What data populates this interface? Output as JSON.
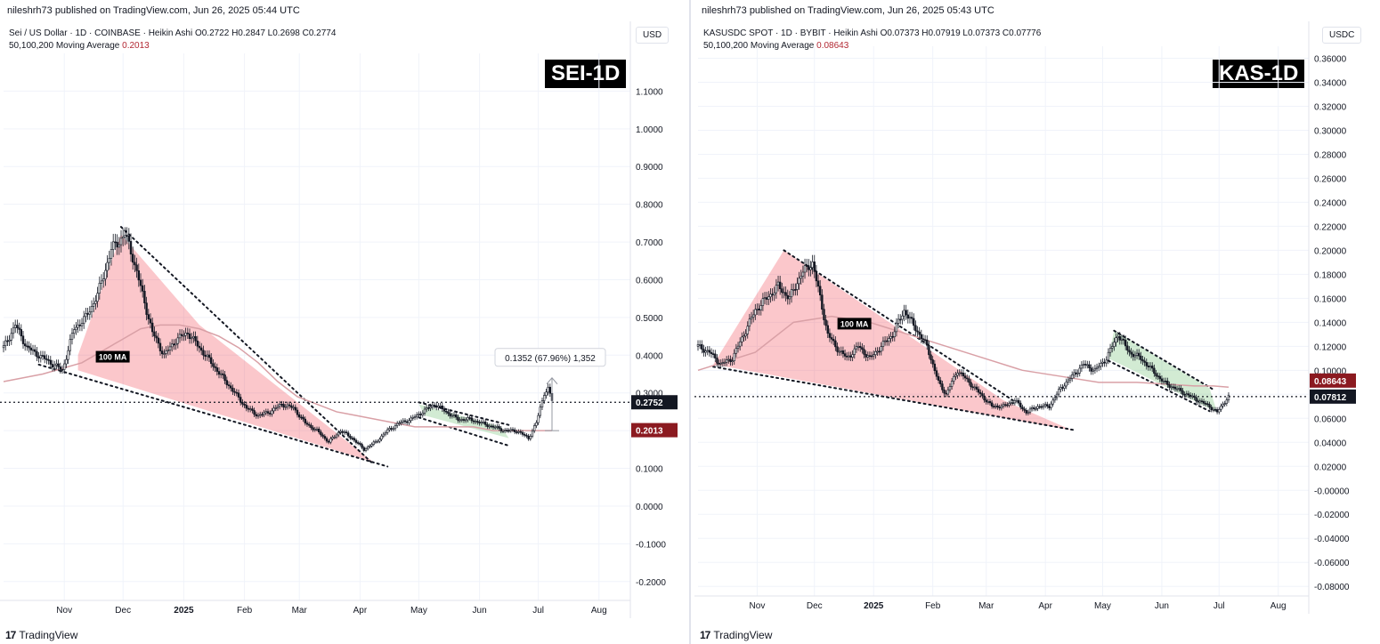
{
  "chart_data": [
    {
      "type": "candlestick",
      "published": "nileshrh73 published on TradingView.com, Jun 26, 2025 05:44 UTC",
      "title": "SEI-1D",
      "symbol_line": "Sei / US Dollar · 1D · COINBASE · Heikin Ashi  O0.2722  H0.2847  L0.2698  C0.2774",
      "ma_label": "50,100,200 Moving Average",
      "ma_value": "0.2013",
      "currency": "USD",
      "ylim": [
        -0.25,
        1.2
      ],
      "y_ticks": [
        "1.1000",
        "1.0000",
        "0.9000",
        "0.8000",
        "0.7000",
        "0.6000",
        "0.5000",
        "0.4000",
        "0.3000",
        "0.2000",
        "0.1000",
        "0.0000",
        "-0.1000",
        "-0.2000"
      ],
      "y_tick_values": [
        1.1,
        1.0,
        0.9,
        0.8,
        0.7,
        0.6,
        0.5,
        0.4,
        0.3,
        0.2,
        0.1,
        0.0,
        -0.1,
        -0.2
      ],
      "x_ticks": [
        "Nov",
        "Dec",
        "2025",
        "Feb",
        "Mar",
        "Apr",
        "May",
        "Jun",
        "Jul",
        "Aug"
      ],
      "x_tick_days": [
        31,
        61,
        92,
        123,
        151,
        182,
        212,
        243,
        273,
        304
      ],
      "x_range_days": [
        0,
        320
      ],
      "current_price": "0.2752",
      "current_value": 0.2752,
      "ma_price_label": "0.2013",
      "ma_price_value": 0.2013,
      "ma_annotation": "100 MA",
      "measure_label": "0.1352 (67.96%) 1,352",
      "measure_from": 0.2,
      "measure_to": 0.34,
      "measure_day": 280,
      "close_series": {
        "days": [
          0,
          6,
          12,
          18,
          24,
          30,
          36,
          42,
          48,
          55,
          62,
          66,
          70,
          76,
          82,
          88,
          94,
          100,
          106,
          112,
          118,
          124,
          130,
          136,
          142,
          148,
          154,
          160,
          166,
          172,
          178,
          184,
          190,
          196,
          202,
          208,
          214,
          220,
          226,
          232,
          238,
          244,
          250,
          256,
          262,
          268,
          272,
          276,
          278,
          280
        ],
        "values": [
          0.42,
          0.48,
          0.42,
          0.4,
          0.38,
          0.36,
          0.47,
          0.5,
          0.56,
          0.68,
          0.72,
          0.66,
          0.58,
          0.46,
          0.4,
          0.44,
          0.46,
          0.42,
          0.38,
          0.34,
          0.3,
          0.26,
          0.24,
          0.25,
          0.27,
          0.26,
          0.22,
          0.2,
          0.17,
          0.2,
          0.18,
          0.15,
          0.17,
          0.2,
          0.22,
          0.23,
          0.25,
          0.27,
          0.25,
          0.23,
          0.23,
          0.22,
          0.21,
          0.2,
          0.2,
          0.18,
          0.22,
          0.3,
          0.31,
          0.28
        ]
      },
      "ma_series": {
        "days": [
          0,
          20,
          40,
          60,
          70,
          80,
          90,
          100,
          110,
          120,
          130,
          140,
          150,
          160,
          170,
          180,
          190,
          200,
          210,
          220,
          230,
          240,
          250,
          260,
          270,
          280
        ],
        "values": [
          0.33,
          0.35,
          0.38,
          0.44,
          0.47,
          0.48,
          0.48,
          0.47,
          0.45,
          0.42,
          0.38,
          0.33,
          0.29,
          0.27,
          0.25,
          0.24,
          0.23,
          0.22,
          0.21,
          0.21,
          0.21,
          0.21,
          0.2,
          0.2,
          0.2,
          0.2
        ]
      },
      "red_wedge": [
        [
          38,
          0.4
        ],
        [
          60,
          0.72
        ],
        [
          100,
          0.48
        ],
        [
          188,
          0.12
        ],
        [
          190,
          0.115
        ],
        [
          100,
          0.26
        ],
        [
          38,
          0.36
        ]
      ],
      "upper_trend": [
        [
          60,
          0.74
        ],
        [
          188,
          0.115
        ]
      ],
      "lower_trend": [
        [
          18,
          0.375
        ],
        [
          196,
          0.105
        ]
      ],
      "green_channel": [
        [
          212,
          0.27
        ],
        [
          254,
          0.21
        ],
        [
          258,
          0.18
        ],
        [
          215,
          0.24
        ]
      ],
      "green_upper": [
        [
          212,
          0.275
        ],
        [
          258,
          0.215
        ]
      ],
      "green_lower": [
        [
          212,
          0.235
        ],
        [
          258,
          0.16
        ]
      ]
    },
    {
      "type": "candlestick",
      "published": "nileshrh73 published on TradingView.com, Jun 26, 2025 05:43 UTC",
      "title": "KAS-1D",
      "symbol_line": "KASUSDC SPOT · 1D · BYBIT · Heikin Ashi  O0.07373  H0.07919  L0.07373  C0.07776",
      "ma_label": "50,100,200 Moving Average",
      "ma_value": "0.08643",
      "currency": "USDC",
      "ylim": [
        -0.088,
        0.37
      ],
      "y_ticks": [
        "0.36000",
        "0.34000",
        "0.32000",
        "0.30000",
        "0.28000",
        "0.26000",
        "0.24000",
        "0.22000",
        "0.20000",
        "0.18000",
        "0.16000",
        "0.14000",
        "0.12000",
        "0.10000",
        "0.08000",
        "0.06000",
        "0.04000",
        "0.02000",
        "-0.00000",
        "-0.02000",
        "-0.04000",
        "-0.06000",
        "-0.08000"
      ],
      "y_tick_values": [
        0.36,
        0.34,
        0.32,
        0.3,
        0.28,
        0.26,
        0.24,
        0.22,
        0.2,
        0.18,
        0.16,
        0.14,
        0.12,
        0.1,
        0.08,
        0.06,
        0.04,
        0.02,
        0.0,
        -0.02,
        -0.04,
        -0.06,
        -0.08
      ],
      "x_ticks": [
        "Nov",
        "Dec",
        "2025",
        "Feb",
        "Mar",
        "Apr",
        "May",
        "Jun",
        "Jul",
        "Aug"
      ],
      "x_tick_days": [
        31,
        61,
        92,
        123,
        151,
        182,
        212,
        243,
        273,
        304
      ],
      "x_range_days": [
        0,
        320
      ],
      "current_price": "0.07812",
      "current_value": 0.07812,
      "ma_price_label": "0.08643",
      "ma_price_value": 0.08643,
      "ma_annotation": "100 MA",
      "close_series": {
        "days": [
          0,
          6,
          12,
          18,
          24,
          30,
          36,
          42,
          48,
          54,
          60,
          64,
          68,
          72,
          78,
          84,
          90,
          96,
          102,
          108,
          112,
          116,
          120,
          126,
          130,
          136,
          142,
          148,
          154,
          160,
          166,
          172,
          178,
          184,
          190,
          196,
          202,
          208,
          214,
          220,
          226,
          232,
          238,
          244,
          250,
          256,
          262,
          268,
          272,
          275,
          278
        ],
        "values": [
          0.12,
          0.115,
          0.105,
          0.11,
          0.13,
          0.15,
          0.16,
          0.17,
          0.16,
          0.18,
          0.19,
          0.16,
          0.13,
          0.12,
          0.11,
          0.12,
          0.11,
          0.12,
          0.13,
          0.15,
          0.14,
          0.13,
          0.12,
          0.09,
          0.08,
          0.1,
          0.09,
          0.08,
          0.07,
          0.07,
          0.075,
          0.065,
          0.07,
          0.07,
          0.085,
          0.095,
          0.105,
          0.1,
          0.11,
          0.13,
          0.115,
          0.11,
          0.1,
          0.09,
          0.085,
          0.08,
          0.075,
          0.07,
          0.065,
          0.072,
          0.078
        ]
      },
      "ma_series": {
        "days": [
          0,
          30,
          50,
          70,
          90,
          110,
          130,
          150,
          170,
          190,
          210,
          220,
          230,
          240,
          250,
          260,
          270,
          278
        ],
        "values": [
          0.1,
          0.115,
          0.14,
          0.145,
          0.14,
          0.13,
          0.12,
          0.11,
          0.1,
          0.095,
          0.09,
          0.09,
          0.09,
          0.089,
          0.088,
          0.087,
          0.087,
          0.086
        ]
      },
      "red_wedge": [
        [
          8,
          0.105
        ],
        [
          45,
          0.2
        ],
        [
          160,
          0.075
        ],
        [
          196,
          0.05
        ],
        [
          8,
          0.105
        ]
      ],
      "upper_trend": [
        [
          45,
          0.2
        ],
        [
          165,
          0.075
        ]
      ],
      "lower_trend": [
        [
          8,
          0.103
        ],
        [
          198,
          0.05
        ]
      ],
      "green_channel": [
        [
          218,
          0.133
        ],
        [
          268,
          0.085
        ],
        [
          272,
          0.065
        ],
        [
          215,
          0.11
        ]
      ],
      "green_upper": [
        [
          218,
          0.133
        ],
        [
          270,
          0.084
        ]
      ],
      "green_lower": [
        [
          215,
          0.108
        ],
        [
          268,
          0.066
        ]
      ]
    }
  ],
  "footer_brand": "TradingView",
  "footer_mark": "17"
}
